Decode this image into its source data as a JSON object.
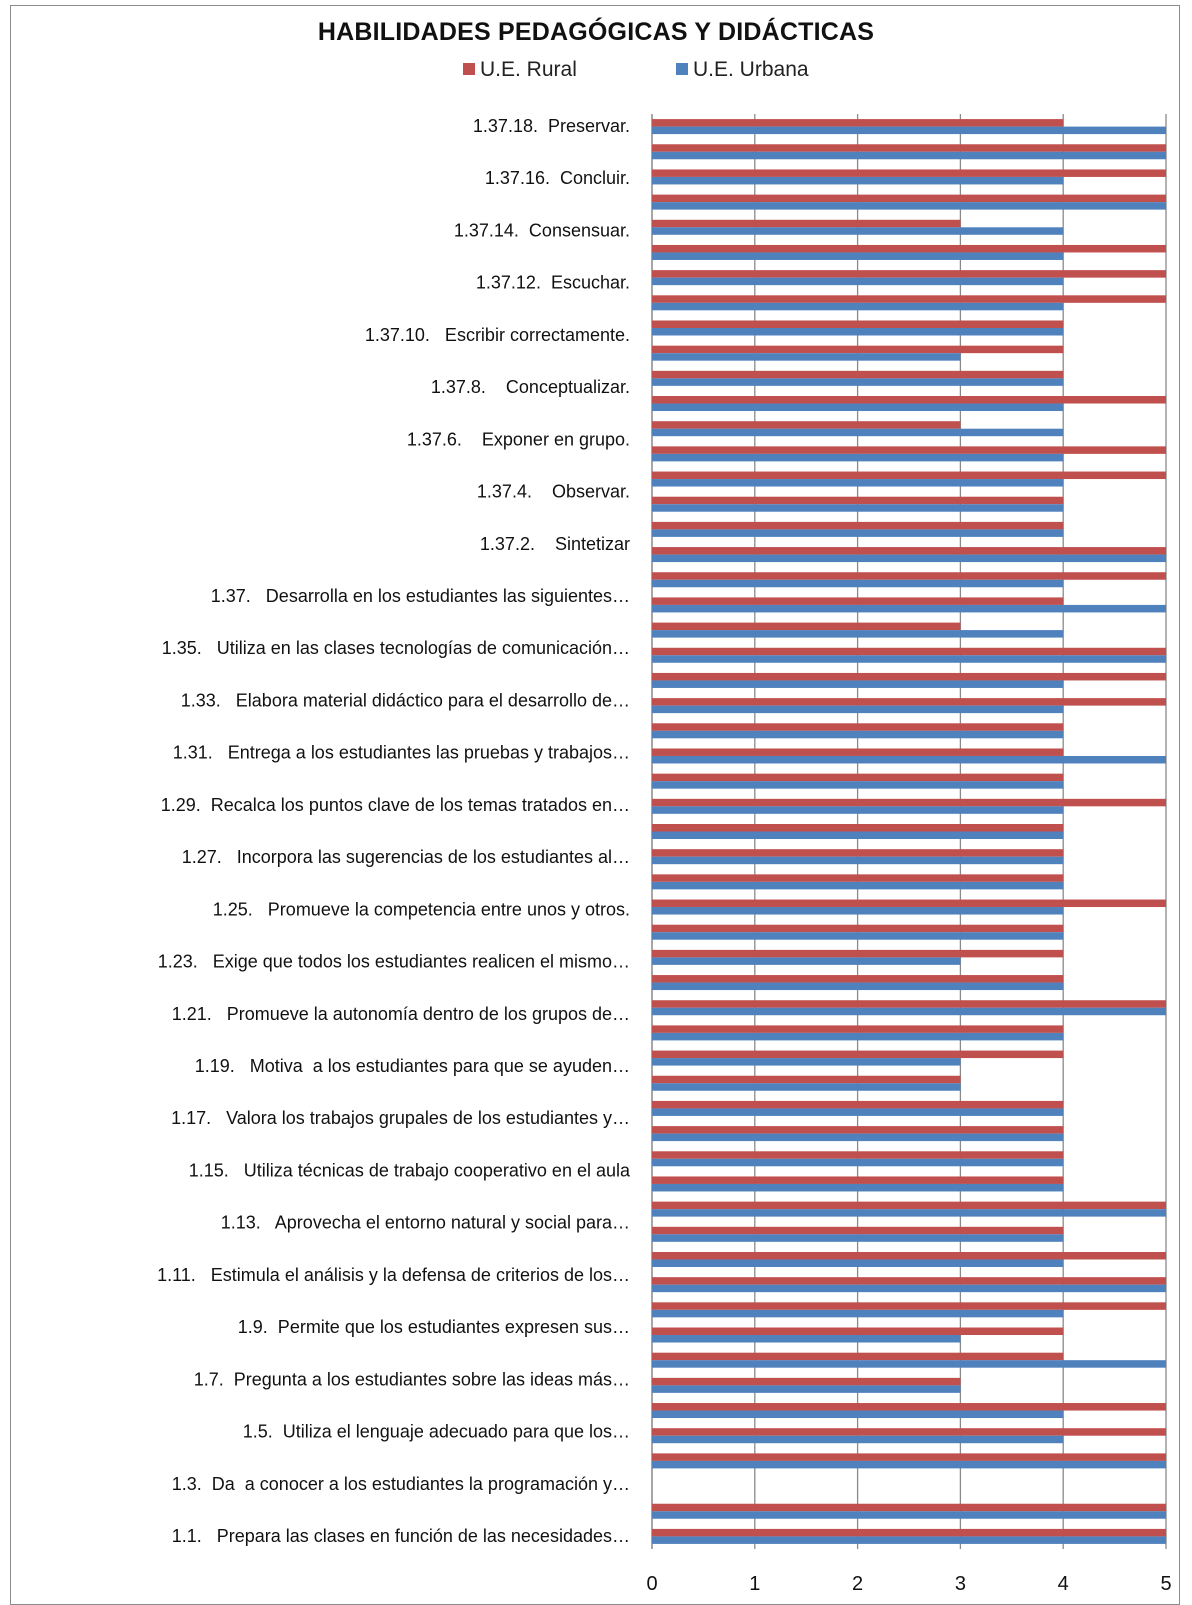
{
  "chart_data": {
    "type": "bar",
    "orientation": "horizontal",
    "title": "HABILIDADES PEDAGÓGICAS Y DIDÁCTICAS",
    "legend_position": "top",
    "grid": true,
    "xlim": [
      0,
      5
    ],
    "x_ticks": [
      "0",
      "1",
      "2",
      "3",
      "4",
      "5"
    ],
    "category_labels": [
      "1.37.18.  Preservar.",
      "1.37.16.  Concluir.",
      "1.37.14.  Consensuar.",
      "1.37.12.  Escuchar.",
      "1.37.10.   Escribir correctamente.",
      "1.37.8.    Conceptualizar.",
      "1.37.6.    Exponer en grupo.",
      "1.37.4.    Observar.",
      "1.37.2.    Sintetizar",
      "1.37.   Desarrolla en los estudiantes las siguientes…",
      "1.35.   Utiliza en las clases tecnologías de comunicación…",
      "1.33.   Elabora material didáctico para el desarrollo de…",
      "1.31.   Entrega a los estudiantes las pruebas y trabajos…",
      "1.29.  Recalca los puntos clave de los temas tratados en…",
      "1.27.   Incorpora las sugerencias de los estudiantes al…",
      "1.25.   Promueve la competencia entre unos y otros.",
      "1.23.   Exige que todos los estudiantes realicen el mismo…",
      "1.21.   Promueve la autonomía dentro de los grupos de…",
      "1.19.   Motiva  a los estudiantes para que se ayuden…",
      "1.17.   Valora los trabajos grupales de los estudiantes y…",
      "1.15.   Utiliza técnicas de trabajo cooperativo en el aula",
      "1.13.   Aprovecha el entorno natural y social para…",
      "1.11.   Estimula el análisis y la defensa de criterios de los…",
      "1.9.  Permite que los estudiantes expresen sus…",
      "1.7.  Pregunta a los estudiantes sobre las ideas más…",
      "1.5.  Utiliza el lenguaje adecuado para que los…",
      "1.3.  Da  a conocer a los estudiantes la programación y…",
      "1.1.   Prepara las clases en función de las necesidades…"
    ],
    "series": [
      {
        "name": "U.E. Rural",
        "color": "#c0504d",
        "values": [
          4,
          5,
          5,
          5,
          3,
          5,
          5,
          5,
          4,
          4,
          4,
          5,
          3,
          5,
          5,
          4,
          4,
          5,
          5,
          4,
          3,
          5,
          5,
          5,
          4,
          4,
          4,
          5,
          4,
          4,
          4,
          5,
          4,
          4,
          4,
          5,
          4,
          4,
          3,
          4,
          4,
          4,
          4,
          5,
          4,
          5,
          5,
          5,
          4,
          4,
          3,
          5,
          5,
          5,
          0,
          5,
          5
        ]
      },
      {
        "name": "U.E. Urbana",
        "color": "#4f81bd",
        "values": [
          5,
          5,
          4,
          5,
          4,
          4,
          4,
          4,
          4,
          3,
          4,
          4,
          4,
          4,
          4,
          4,
          4,
          5,
          4,
          5,
          4,
          5,
          4,
          4,
          4,
          5,
          4,
          4,
          4,
          4,
          4,
          4,
          4,
          3,
          4,
          5,
          4,
          3,
          3,
          4,
          4,
          4,
          4,
          5,
          4,
          4,
          5,
          4,
          3,
          5,
          3,
          4,
          4,
          5,
          0,
          5,
          5
        ]
      }
    ]
  }
}
